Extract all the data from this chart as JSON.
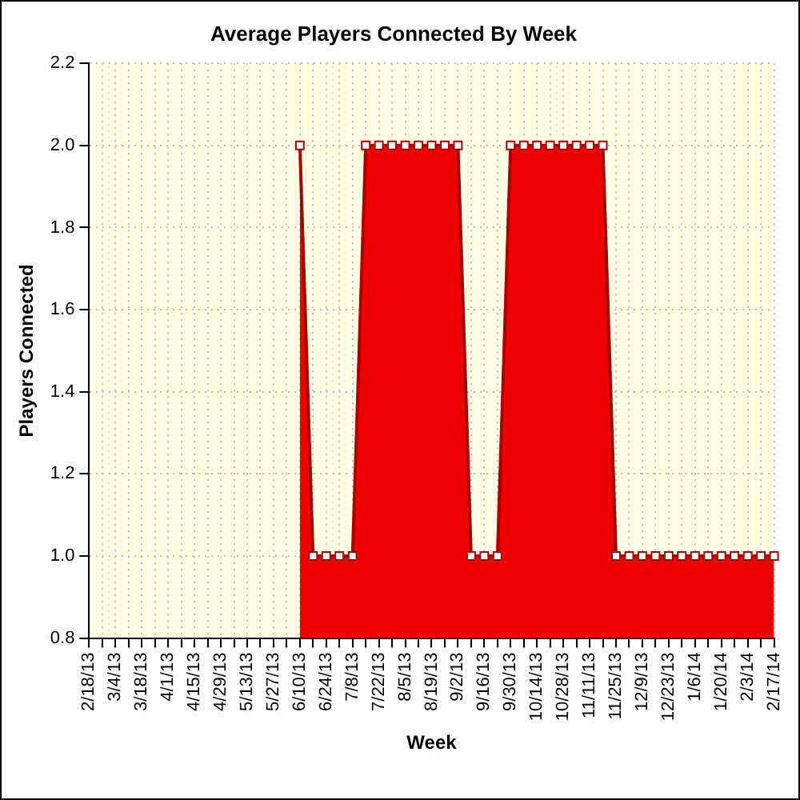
{
  "chart_data": {
    "type": "area",
    "title": "Average Players Connected By Week",
    "xlabel": "Week",
    "ylabel": "Players Connected",
    "categories": [
      "2/18/13",
      null,
      "3/4/13",
      null,
      "3/18/13",
      null,
      "4/1/13",
      null,
      "4/15/13",
      null,
      "4/29/13",
      null,
      "5/13/13",
      null,
      "5/27/13",
      null,
      "6/10/13",
      null,
      "6/24/13",
      null,
      "7/8/13",
      null,
      "7/22/13",
      null,
      "8/5/13",
      null,
      "8/19/13",
      null,
      "9/2/13",
      null,
      "9/16/13",
      null,
      "9/30/13",
      null,
      "10/14/13",
      null,
      "10/28/13",
      null,
      "11/11/13",
      null,
      "11/25/13",
      null,
      "12/9/13",
      null,
      "12/23/13",
      null,
      "1/6/14",
      null,
      "1/20/14",
      null,
      "2/3/14",
      null,
      "2/17/14"
    ],
    "series": [
      {
        "color": "#ee0000",
        "values": [
          null,
          null,
          null,
          null,
          null,
          null,
          null,
          null,
          null,
          null,
          null,
          null,
          null,
          null,
          null,
          null,
          2,
          1,
          1,
          1,
          1,
          2,
          2,
          2,
          2,
          2,
          2,
          2,
          2,
          1,
          1,
          1,
          2,
          2,
          2,
          2,
          2,
          2,
          2,
          2,
          1,
          1,
          1,
          1,
          1,
          1,
          1,
          1,
          1,
          1,
          1,
          1,
          1
        ]
      }
    ],
    "ylim": [
      0.8,
      2.2
    ],
    "yticks": [
      0.8,
      {
        "value": 1,
        "label": "1.0"
      },
      1.2,
      1.4,
      1.6,
      1.8,
      {
        "value": 2,
        "label": "2.0"
      },
      2.2
    ],
    "grid": true,
    "marker": "square"
  }
}
